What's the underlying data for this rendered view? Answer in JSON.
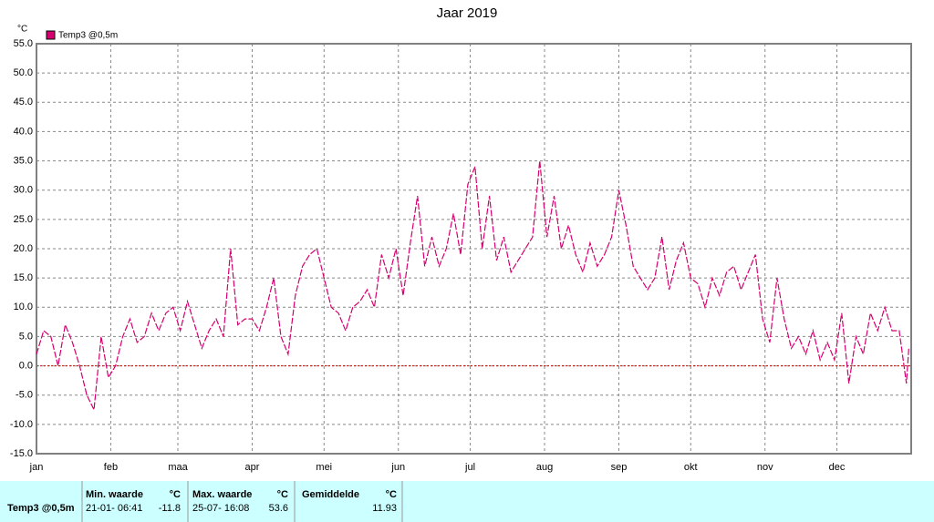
{
  "chart_data": {
    "type": "line",
    "title": "Jaar 2019",
    "ylabel": "°C",
    "xlim": [
      0,
      365
    ],
    "xticks": [
      {
        "value": 0,
        "label": "jan"
      },
      {
        "value": 31,
        "label": "feb"
      },
      {
        "value": 59,
        "label": "maa"
      },
      {
        "value": 90,
        "label": "apr"
      },
      {
        "value": 120,
        "label": "mei"
      },
      {
        "value": 151,
        "label": "jun"
      },
      {
        "value": 181,
        "label": "jul"
      },
      {
        "value": 212,
        "label": "aug"
      },
      {
        "value": 243,
        "label": "sep"
      },
      {
        "value": 273,
        "label": "okt"
      },
      {
        "value": 304,
        "label": "nov"
      },
      {
        "value": 334,
        "label": "dec"
      }
    ],
    "ylim": [
      -15,
      55
    ],
    "yticks": [
      {
        "value": -15,
        "label": "-15.0"
      },
      {
        "value": -10,
        "label": "-10.0"
      },
      {
        "value": -5,
        "label": "-5.0"
      },
      {
        "value": 0,
        "label": "0.0"
      },
      {
        "value": 5,
        "label": "5.0"
      },
      {
        "value": 10,
        "label": "10.0"
      },
      {
        "value": 15,
        "label": "15.0"
      },
      {
        "value": 20,
        "label": "20.0"
      },
      {
        "value": 25,
        "label": "25.0"
      },
      {
        "value": 30,
        "label": "30.0"
      },
      {
        "value": 35,
        "label": "35.0"
      },
      {
        "value": 40,
        "label": "40.0"
      },
      {
        "value": 45,
        "label": "45.0"
      },
      {
        "value": 50,
        "label": "50.0"
      },
      {
        "value": 55,
        "label": "55.0"
      }
    ],
    "grid": true,
    "hline": {
      "value": 0,
      "color": "#cc0000"
    },
    "x": [
      0,
      3,
      6,
      9,
      12,
      15,
      18,
      21,
      24,
      27,
      30,
      33,
      36,
      39,
      42,
      45,
      48,
      51,
      54,
      57,
      60,
      63,
      66,
      69,
      72,
      75,
      78,
      81,
      84,
      87,
      90,
      93,
      96,
      99,
      102,
      105,
      108,
      111,
      114,
      117,
      120,
      123,
      126,
      129,
      132,
      135,
      138,
      141,
      144,
      147,
      150,
      153,
      156,
      159,
      162,
      165,
      168,
      171,
      174,
      177,
      180,
      183,
      186,
      189,
      192,
      195,
      198,
      201,
      204,
      207,
      210,
      213,
      216,
      219,
      222,
      225,
      228,
      231,
      234,
      237,
      240,
      243,
      246,
      249,
      252,
      255,
      258,
      261,
      264,
      267,
      270,
      273,
      276,
      279,
      282,
      285,
      288,
      291,
      294,
      297,
      300,
      303,
      306,
      309,
      312,
      315,
      318,
      321,
      324,
      327,
      330,
      333,
      336,
      339,
      342,
      345,
      348,
      351,
      354,
      357,
      360,
      363,
      364
    ],
    "series": [
      {
        "name": "Temp3 @0,5m",
        "color": "#d4006f",
        "values": [
          2,
          6,
          5,
          0,
          7,
          4,
          0,
          -5,
          -7.5,
          5,
          -2,
          0,
          5,
          8,
          4,
          5,
          9,
          6,
          9,
          10,
          6,
          11,
          7,
          3,
          6,
          8,
          5,
          20,
          7,
          8,
          8,
          6,
          10,
          15,
          5,
          2,
          12,
          17,
          19,
          20,
          15,
          10,
          9,
          6,
          10,
          11,
          13,
          10,
          19,
          15,
          20,
          12,
          21,
          29,
          17,
          22,
          17,
          20,
          26,
          19,
          31,
          34,
          20,
          29,
          18,
          22,
          16,
          18,
          20,
          22,
          35,
          22,
          29,
          20,
          24,
          19,
          16,
          21,
          17,
          19,
          22,
          30,
          24,
          17,
          15,
          13,
          15,
          22,
          13,
          18,
          21,
          15,
          14,
          10,
          15,
          12,
          16,
          17,
          13,
          16,
          19,
          8,
          4,
          15,
          8,
          3,
          5,
          2,
          6,
          1,
          4,
          1,
          9,
          -3,
          5,
          2,
          9,
          6,
          10,
          6,
          6,
          -3,
          3
        ]
      }
    ]
  },
  "table": {
    "headers": [
      "Min. waarde",
      "°C",
      "Max. waarde",
      "°C",
      "Gemiddelde",
      "°C"
    ],
    "rows": [
      [
        "Temp3 @0,5m",
        "21-01- 06:41",
        "-11.8",
        "25-07- 16:08",
        "53.6",
        "11.93"
      ]
    ]
  }
}
